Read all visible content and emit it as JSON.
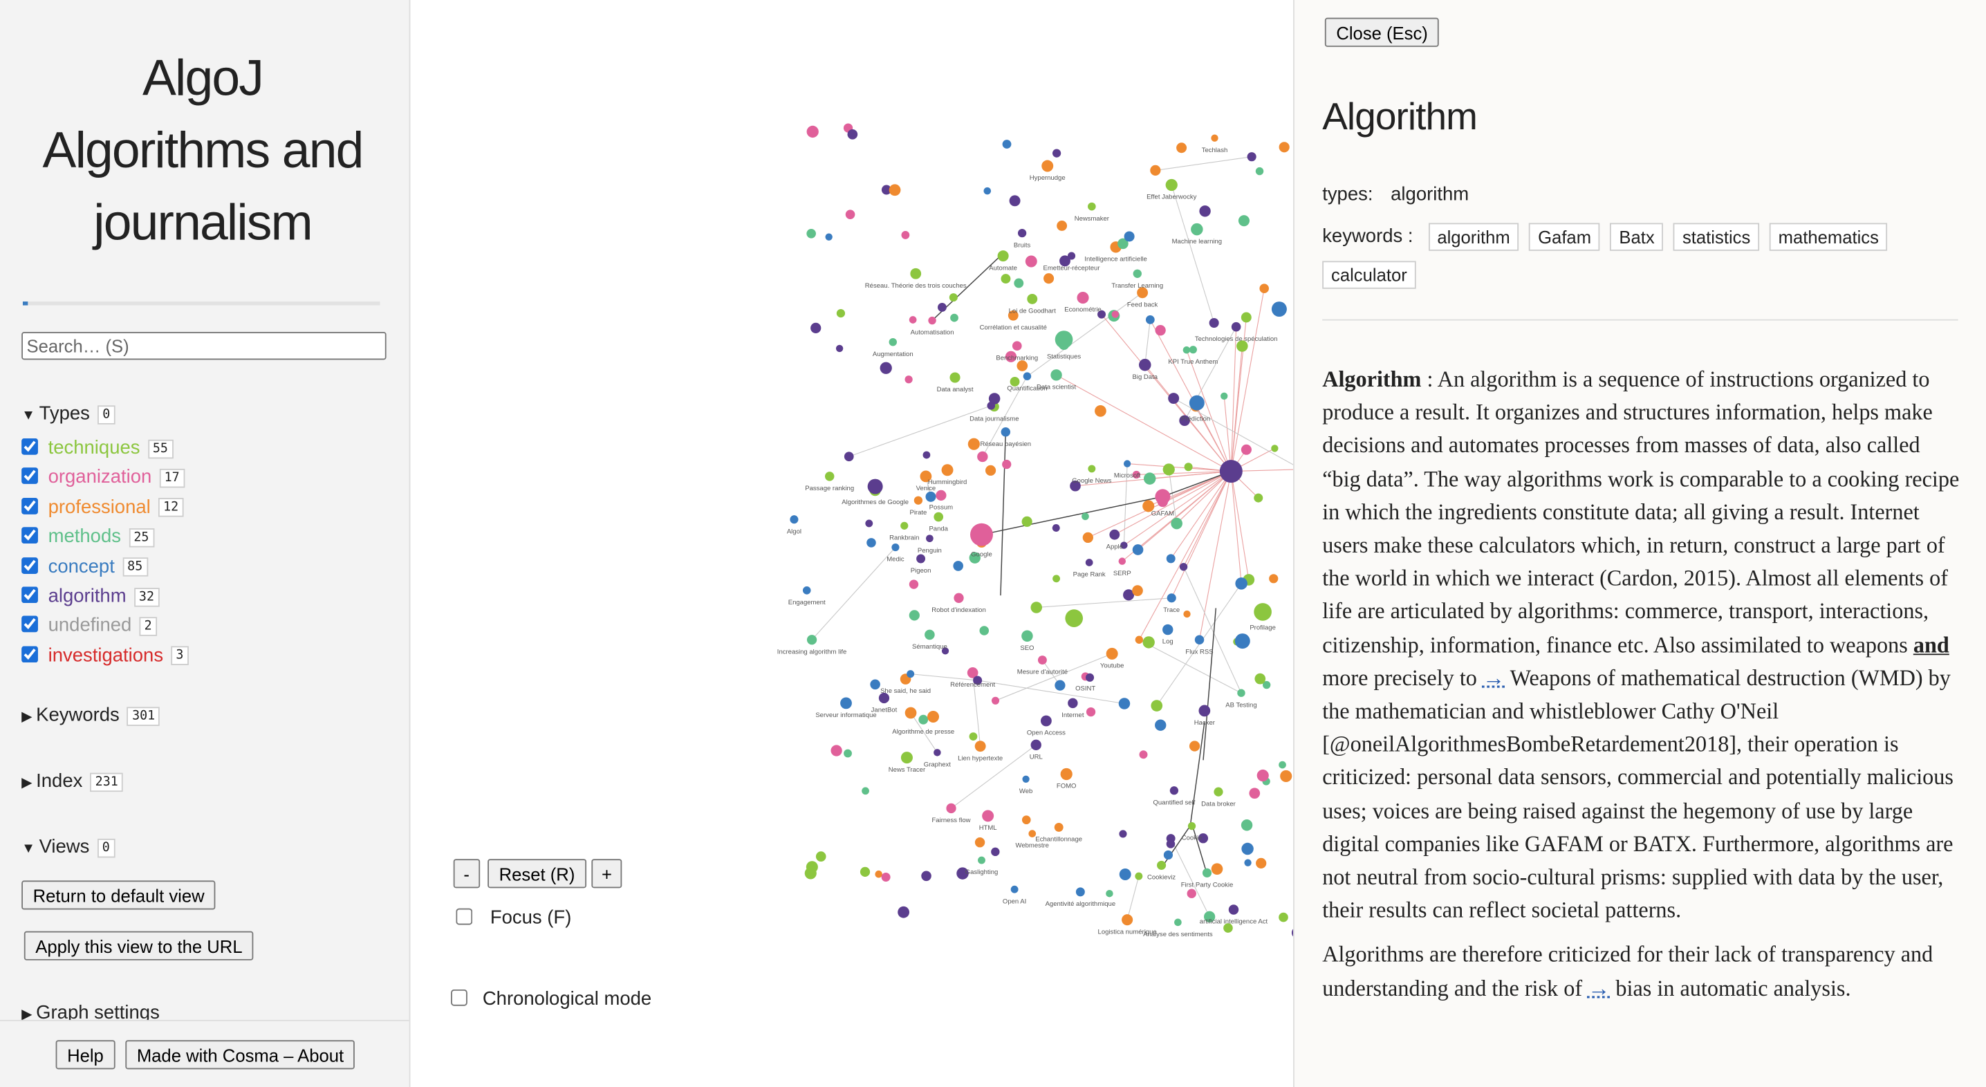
{
  "sidebar": {
    "title": [
      "AlgoJ",
      "Algorithms and journalism"
    ],
    "search_placeholder": "Search… (S)",
    "types": {
      "label": "Types",
      "count": 0,
      "items": [
        {
          "name": "techniques",
          "count": 55,
          "color": "#8cc63f"
        },
        {
          "name": "organization",
          "count": 17,
          "color": "#e0609a"
        },
        {
          "name": "professional",
          "count": 12,
          "color": "#ef8a2f"
        },
        {
          "name": "methods",
          "count": 25,
          "color": "#5fc08a"
        },
        {
          "name": "concept",
          "count": 85,
          "color": "#3a7cc0"
        },
        {
          "name": "algorithm",
          "count": 32,
          "color": "#5b3d8e"
        },
        {
          "name": "undefined",
          "count": 2,
          "color": "#999999"
        },
        {
          "name": "investigations",
          "count": 3,
          "color": "#d62a2a"
        }
      ]
    },
    "keywords": {
      "label": "Keywords",
      "count": 301
    },
    "index": {
      "label": "Index",
      "count": 231
    },
    "views": {
      "label": "Views",
      "count": 0,
      "buttons": [
        "Return to default view",
        "Apply this view to the URL"
      ]
    },
    "graph_settings": "Graph settings",
    "footer_buttons": [
      "Help",
      "Made with Cosma – About"
    ]
  },
  "graph": {
    "controls": {
      "zoom_out": "-",
      "reset": "Reset (R)",
      "zoom_in": "+",
      "focus": "Focus (F)",
      "chronological": "Chronological mode"
    },
    "node_labels": [
      "Techlash",
      "Hypernudge",
      "Effet Jaberwocky",
      "Newsmaker",
      "Machine learning",
      "Bruits",
      "Intelligence artificielle",
      "Automate",
      "Emetteur-récepteur",
      "Réseau. Théorie des trois couches",
      "Transfer Learning",
      "Feed back",
      "Loi de Goodhart",
      "Econométrie",
      "Corrélation et causalité",
      "Automatisation",
      "Augmentation",
      "Statistiques",
      "Benchmarking",
      "Technologies de spéculation",
      "Data analyst",
      "Quantification",
      "Data scientist",
      "Big Data",
      "KPI True Anthem",
      "Data journalisme",
      "Prédiction",
      "Réseau bayésien",
      "Page Rank",
      "Passage ranking",
      "Algorithmes de Google",
      "Hummingbird",
      "Venice",
      "Possum",
      "Pirate",
      "Panda",
      "Rankbrain",
      "Penguin",
      "Medic",
      "Pigeon",
      "Algol",
      "Google",
      "GAFAM",
      "Engagement",
      "Increasing algorithm life",
      "Sémantique",
      "Robot d'indexation",
      "SEO",
      "Mesure d'autorité",
      "Référencement",
      "OSINT",
      "Youtube",
      "Internet",
      "Serveur informatique",
      "Algorithme de presse",
      "Lien hypertexte",
      "URL",
      "Web",
      "Open Access",
      "Graphext",
      "News Tracer",
      "FOMO",
      "Fairness flow",
      "HTML",
      "Webmestre",
      "Echantillonnage",
      "Gaslighting",
      "Open AI",
      "Agentivité algorithmique",
      "Cookieviz",
      "First Party Cookie",
      "Logistica numérique",
      "Analyse des sentiments",
      "artificial intelligence Act",
      "Cookie",
      "Data broker",
      "Quantified self",
      "Profilage",
      "Hacker",
      "AB Testing",
      "Log",
      "Flux RSS",
      "Trace",
      "Microsoft",
      "Apple",
      "SERP",
      "Google News",
      "She said, he said",
      "JanetBot"
    ]
  },
  "record": {
    "close": "Close (Esc)",
    "title": "Algorithm",
    "types_label": "types:",
    "type": "algorithm",
    "keywords_label": "keywords :",
    "keywords": [
      "algorithm",
      "Gafam",
      "Batx",
      "statistics",
      "mathematics",
      "calculator"
    ],
    "paragraphs": [
      [
        {
          "text": "Algorithm",
          "style": "bold"
        },
        {
          "text": " : An algorithm is a sequence of instructions organized to produce a result. It organizes and structures information, helps make decisions and automates processes from masses of data, also called “big data”. The way algorithms work is comparable to a cooking recipe in which the ingredients constitute data; all giving a result. Internet users make these calculators which, in return, construct a large part of the world in which we interact (Cardon, 2015). Almost all elements of life are articulated by algorithms: commerce, transport, interactions, citizenship, information, finance etc. Also assimilated to weapons ",
          "style": "plain"
        },
        {
          "text": "and",
          "style": "bold-underline"
        },
        {
          "text": " more precisely to ",
          "style": "plain"
        },
        {
          "text": "→",
          "style": "link"
        },
        {
          "text": " Weapons of mathematical destruction (WMD) by the mathematician and whistleblower Cathy O'Neil [@oneilAlgorithmesBombeRetardement2018], their operation is criticized: personal data sensors, commercial and potentially malicious uses; voices are being raised against the hegemony of use by large digital companies like GAFAM or BATX. Furthermore, algorithms are not neutral from socio-cultural prisms: supplied with data by the user, their results can reflect societal patterns.",
          "style": "plain"
        }
      ],
      [
        {
          "text": "Algorithms are therefore criticized for their lack of transparency and understanding and the risk of ",
          "style": "plain"
        },
        {
          "text": "→",
          "style": "link"
        },
        {
          "text": " bias in automatic analysis.",
          "style": "plain"
        }
      ]
    ]
  }
}
